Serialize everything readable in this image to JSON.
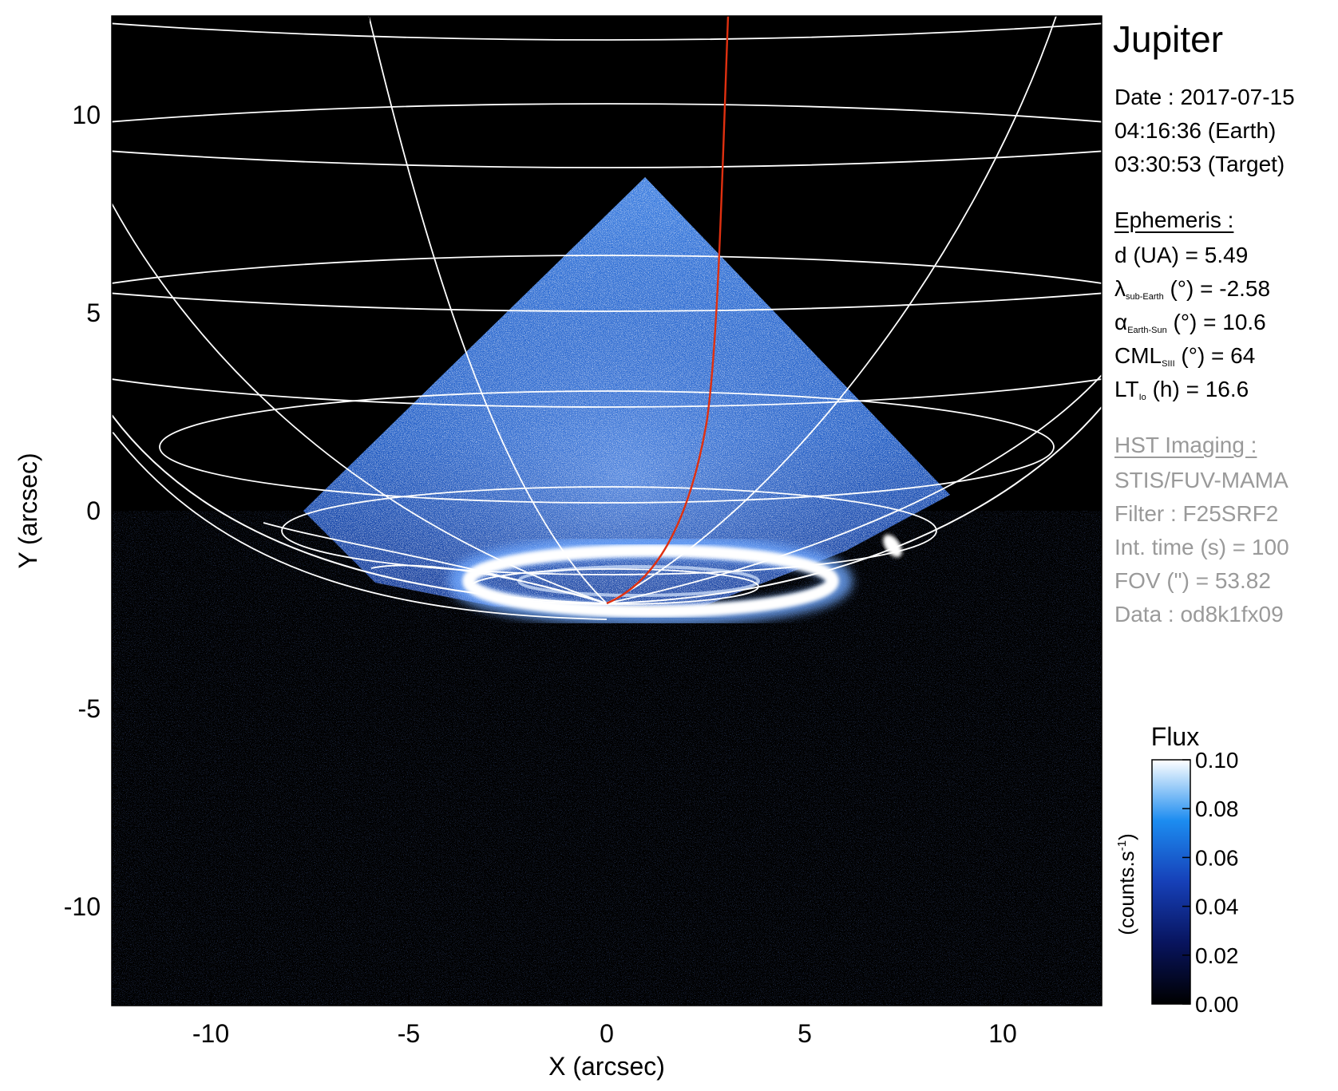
{
  "title": "Jupiter",
  "date": {
    "label": "Date : 2017-07-15",
    "earth_time": "04:16:36 (Earth)",
    "target_time": "03:30:53 (Target)"
  },
  "ephemeris": {
    "heading": "Ephemeris :",
    "d": "d (UA)    = 5.49",
    "lambda_symbol": "λ",
    "lambda_sub": "sub-Earth",
    "lambda_rest": " (°) = -2.58",
    "alpha_symbol": "α",
    "alpha_sub": "Earth-Sun",
    "alpha_rest": " (°) = 10.6",
    "cml_symbol": "CML",
    "cml_sub": "SIII",
    "cml_rest": " (°) = 64",
    "lt_symbol": "LT",
    "lt_sub": "Io",
    "lt_rest": " (h) = 16.6"
  },
  "hst": {
    "heading": "HST Imaging :",
    "instrument": "STIS/FUV-MAMA",
    "filter": "Filter : F25SRF2",
    "int_time": "Int. time (s) = 100",
    "fov": "FOV (\") = 53.82",
    "data": "Data : od8k1fx09"
  },
  "axes": {
    "xlabel": "X (arcsec)",
    "ylabel": "Y (arcsec)",
    "x_ticks": [
      "-10",
      "-5",
      "0",
      "5",
      "10"
    ],
    "y_ticks": [
      "10",
      "5",
      "0",
      "-5",
      "-10"
    ],
    "x_tick_values": [
      -10,
      -5,
      0,
      5,
      10
    ],
    "y_tick_values": [
      10,
      5,
      0,
      -5,
      -10
    ],
    "xlim": [
      -12.5,
      12.5
    ],
    "ylim": [
      -12.5,
      12.5
    ]
  },
  "colorbar": {
    "title": "Flux",
    "unit": "(counts.s",
    "unit_sup": "-1",
    "unit_end": ")",
    "ticks": [
      "0.10",
      "0.08",
      "0.06",
      "0.04",
      "0.02",
      "0.00"
    ],
    "tick_values": [
      0.1,
      0.08,
      0.06,
      0.04,
      0.02,
      0.0
    ],
    "range": [
      0.0,
      0.1
    ]
  },
  "colors": {
    "background": "#000000",
    "grid": "#ffffff",
    "io_footprint_line": "#e03010",
    "emission_low": "#0a1f6e",
    "emission_mid": "#1e64d2",
    "emission_high": "#ffffff"
  }
}
